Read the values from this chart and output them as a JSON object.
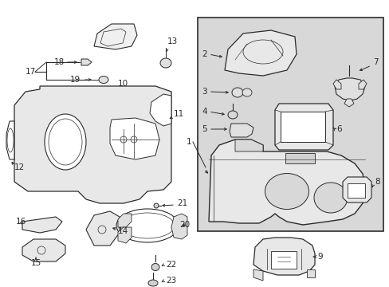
{
  "bg_color": "#ffffff",
  "line_color": "#2a2a2a",
  "box_bg": "#d8d8d8",
  "fig_w": 4.89,
  "fig_h": 3.6,
  "dpi": 100
}
